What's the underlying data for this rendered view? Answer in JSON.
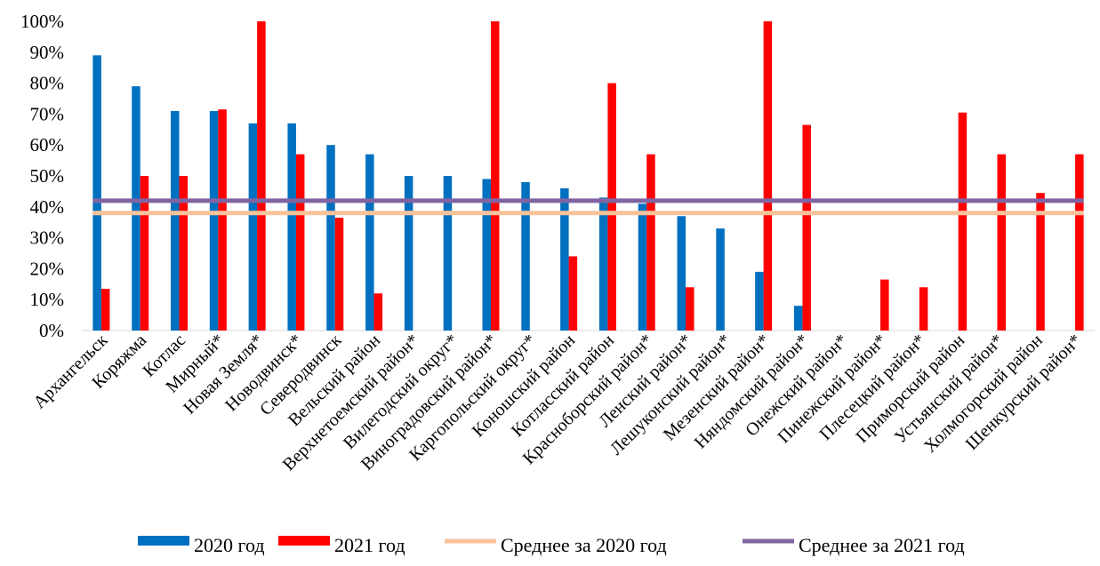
{
  "chart_data": {
    "type": "bar",
    "categories": [
      "Архангельск",
      "Коряжма",
      "Котлас",
      "Мирный*",
      "Новая Земля*",
      "Новодвинск*",
      "Северодвинск",
      "Вельский район",
      "Верхнетоемский район*",
      "Вилегодский округ*",
      "Виноградовский район*",
      "Каргопольский округ*",
      "Коношский район",
      "Котласский район",
      "Красноборский район*",
      "Ленский район*",
      "Лешуконский район*",
      "Мезенский район*",
      "Няндомский район*",
      "Онежский район*",
      "Пинежский район*",
      "Плесецкий район*",
      "Приморский район",
      "Устьянский район*",
      "Холмогорский район",
      "Шенкурский район*"
    ],
    "series": [
      {
        "name": "2020 год",
        "color": "#0070C0",
        "values": [
          89,
          79,
          71,
          71,
          67,
          67,
          60,
          57,
          50,
          50,
          49,
          48,
          46,
          43,
          41,
          37,
          33,
          19,
          8,
          0,
          0,
          0,
          0,
          0,
          0,
          0
        ]
      },
      {
        "name": "2021 год",
        "color": "#FF0000",
        "values": [
          13.5,
          50,
          50,
          71.5,
          100,
          57,
          36.5,
          12,
          0,
          0,
          100,
          0,
          24,
          80,
          57,
          14,
          0,
          100,
          66.5,
          0,
          16.5,
          14,
          70.5,
          57,
          44.5,
          57
        ]
      }
    ],
    "lines": [
      {
        "name": "Среднее за 2020 год",
        "color": "#F8C39A",
        "value": 38
      },
      {
        "name": "Среднее за 2021 год",
        "color": "#8064A2",
        "value": 42
      }
    ],
    "y_ticks": [
      "0%",
      "10%",
      "20%",
      "30%",
      "40%",
      "50%",
      "60%",
      "70%",
      "80%",
      "90%",
      "100%"
    ],
    "ylim": [
      0,
      100
    ],
    "title": "",
    "xlabel": "",
    "ylabel": "",
    "legend_position": "bottom",
    "grid": false
  }
}
